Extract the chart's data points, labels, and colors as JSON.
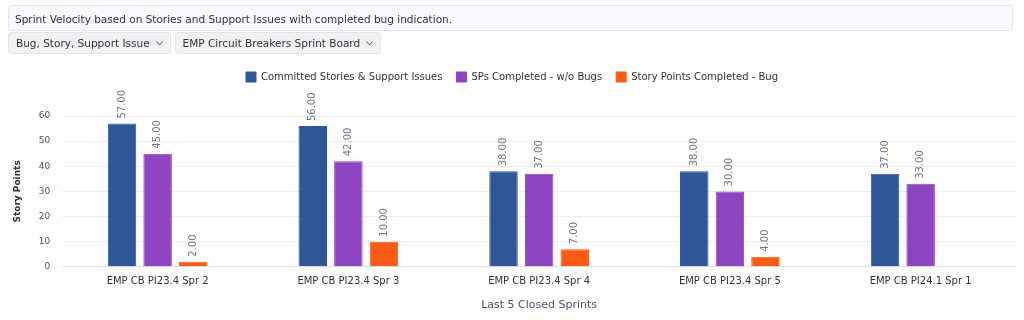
{
  "chart_data": {
    "type": "bar",
    "title": "Sprint Velocity based on Stories and Support Issues with completed bug indication.",
    "annotations": [
      "Bug, Story, Support Issue",
      "EMP Circuit Breakers Sprint Board"
    ],
    "xlabel": "Last 5 Closed Sprints",
    "ylabel": "Story Points",
    "categories": [
      "EMP CB PI23.4 Spr 2",
      "EMP CB PI23.4 Spr 3",
      "EMP CB PI23.4 Spr 4",
      "EMP CB PI23.4 Spr 5",
      "EMP CB PI24.1 Spr 1"
    ],
    "series": [
      {
        "name": "Committed Stories & Support Issues",
        "color": "#2e5797",
        "values": [
          57,
          56,
          38,
          38,
          37
        ],
        "value_labels": [
          "57.00",
          "56.00",
          "38.00",
          "38.00",
          "37.00"
        ]
      },
      {
        "name": "SPs Completed - w/o Bugs",
        "color": "#8e44c2",
        "values": [
          45,
          42,
          37,
          30,
          33
        ],
        "value_labels": [
          "45.00",
          "42.00",
          "37.00",
          "30.00",
          "33.00"
        ]
      },
      {
        "name": "Story Points Completed - Bug",
        "color": "#fa5c16",
        "values": [
          2,
          10,
          7,
          4,
          null
        ],
        "value_labels": [
          "2.00",
          "10.00",
          "7.00",
          "4.00",
          null
        ]
      }
    ],
    "ylim": [
      0,
      60
    ],
    "yticks": [
      0,
      10,
      20,
      30,
      40,
      50,
      60
    ],
    "grid": "y",
    "legend": "top"
  }
}
